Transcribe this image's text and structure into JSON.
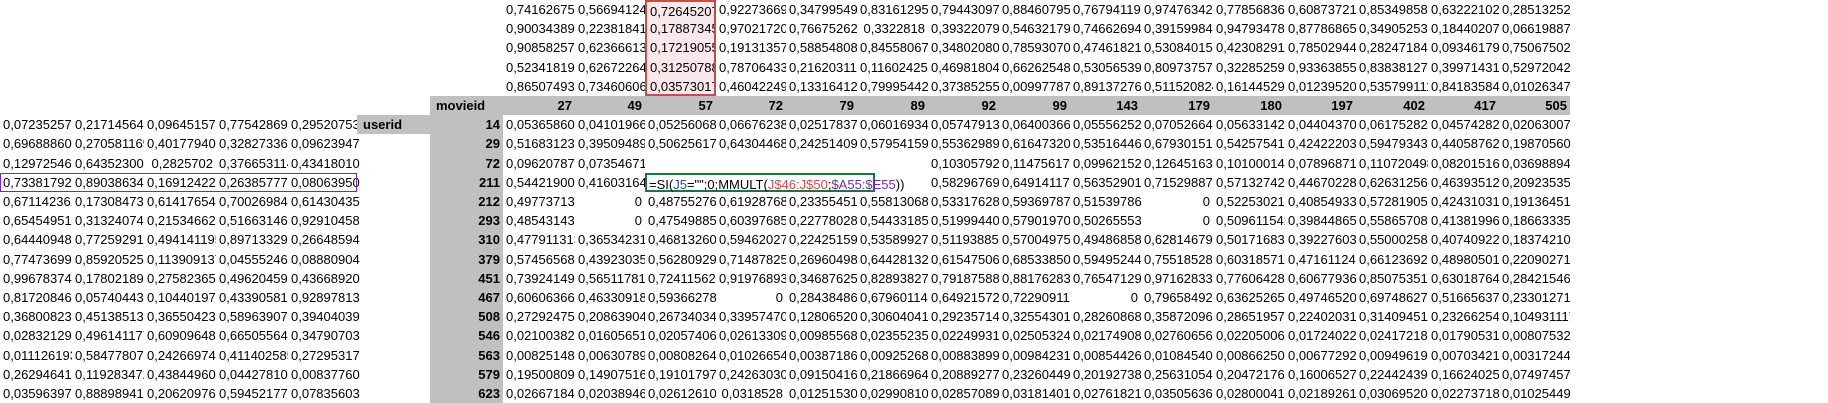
{
  "top_rows": [
    [
      "0,741626754",
      "0,566941246",
      "0,726452078",
      "0,922736695",
      "0,347995495",
      "0,831612957",
      "0,794430979",
      "0,884607959",
      "0,767941193",
      "0,974763423",
      "0,778568364",
      "0,608737219",
      "0,853498589",
      "0,632221028",
      "0,285132524"
    ],
    [
      "0,900343895",
      "0,22381841",
      "0,178873455",
      "0,970217202",
      "0,76675262",
      "0,3322818",
      "0,393220796",
      "0,546321797",
      "0,746626943",
      "0,391599842",
      "0,947934784",
      "0,877868657",
      "0,349052539",
      "0,184402072",
      "0,066198875"
    ],
    [
      "0,908582578",
      "0,623666138",
      "0,172190553",
      "0,191313579",
      "0,588548081",
      "0,845580679",
      "0,348020802",
      "0,785930702",
      "0,474618218",
      "0,530840151",
      "0,423082911",
      "0,785029445",
      "0,282471842",
      "0,093461792",
      "0,750675028"
    ],
    [
      "0,523418197",
      "0,626722646",
      "0,31250788",
      "0,787064337",
      "0,216203111",
      "0,116024255",
      "0,469818047",
      "0,662625488",
      "0,530565394",
      "0,809737576",
      "0,322852595",
      "0,933638559",
      "0,838381271",
      "0,39971431",
      "0,529720424"
    ],
    [
      "0,865074938",
      "0,734606065",
      "0,035730178",
      "0,460422495",
      "0,133164121",
      "0,79995442",
      "0,373852559",
      "0,00997787",
      "0,891372766",
      "0,511520824",
      "0,161445293",
      "0,012395201",
      "0,535799111",
      "0,841835844",
      "0,010263473"
    ]
  ],
  "header_row": {
    "movieid_label": "movieid",
    "movie_ids": [
      "27",
      "49",
      "57",
      "72",
      "79",
      "89",
      "92",
      "99",
      "143",
      "179",
      "180",
      "197",
      "402",
      "417",
      "505"
    ]
  },
  "userid_label": "userid",
  "formula": {
    "prefix": "=SI(",
    "ref1": "J5",
    "mid": "=\"\";0;MMULT(",
    "ref2": "J$46:J$50",
    "sep": ";",
    "ref3": "$A55:$E55",
    "suffix": "))"
  },
  "data_rows": [
    {
      "left": [
        "0,072352579",
        "0,217145647",
        "0,096451574",
        "0,775428694",
        "0,29520753"
      ],
      "userid": "14",
      "values": [
        "0,053658609",
        "0,041019661",
        "0,052560682",
        "0,06676238",
        "0,025178372",
        "0,060169342",
        "0,05747913",
        "0,064003667",
        "0,055562526",
        "0,070526648",
        "0,056331429",
        "0,044043708",
        "0,061752824",
        "0,045742822",
        "0,020630074"
      ]
    },
    {
      "left": [
        "0,696888602",
        "0,270581169",
        "0,401779403",
        "0,328273369",
        "0,096239477"
      ],
      "userid": "29",
      "values": [
        "0,516831232",
        "0,395094892",
        "0,506256173",
        "0,643044685",
        "0,242514094",
        "0,579541591",
        "0,553629894",
        "0,616473204",
        "0,535164464",
        "0,679301519",
        "0,542575418",
        "0,42422203",
        "0,594793438",
        "0,440587628",
        "0,198705606"
      ]
    },
    {
      "left": [
        "0,129725461",
        "0,643523004",
        "0,2825702",
        "0,376653114",
        "0,434180101"
      ],
      "userid": "72",
      "values": [
        "0,096207873",
        "0,073546715",
        "",
        "",
        "",
        "",
        "0,103057925",
        "0,114756176",
        "0,099621526",
        "0,126451635",
        "0,10100014",
        "0,078968717",
        "0,110720498",
        "0,082015165",
        "0,036988948"
      ]
    },
    {
      "left": [
        "0,733817925",
        "0,89038634",
        "0,169124225",
        "0,263857775",
        "0,080639503"
      ],
      "userid": "211",
      "values": [
        "0,544219006",
        "0,416031649",
        "",
        "",
        "",
        "",
        "0,582967693",
        "0,649141177",
        "0,563529013",
        "0,715298873",
        "0,571327421",
        "0,446702283",
        "0,626312564",
        "0,463935123",
        "0,209235357"
      ],
      "formula_row": true
    },
    {
      "left": [
        "0,671142361",
        "0,173084731",
        "0,614176541",
        "0,700269846",
        "0,614304356"
      ],
      "userid": "212",
      "values": [
        "0,497737131",
        "0",
        "0,487552763",
        "0,619287684",
        "0,233554518",
        "0,558130683",
        "0,533176283",
        "0,593697874",
        "0,515397865",
        "0",
        "0,52253021",
        "0,408549335",
        "0,572819058",
        "0,424310313",
        "0,191364515"
      ]
    },
    {
      "left": [
        "0,654549512",
        "0,313240743",
        "0,21534662",
        "0,516631469",
        "0,929104587"
      ],
      "userid": "293",
      "values": [
        "0,48543143",
        "0",
        "0,475498853",
        "0,603976853",
        "0,227780281",
        "0,544331855",
        "0,519994409",
        "0,579019708",
        "0,502655533",
        "0",
        "0,509611542",
        "0,39844865",
        "0,558657085",
        "0,413819965",
        "0,186633354"
      ]
    },
    {
      "left": [
        "0,644409483",
        "0,772592915",
        "0,494141195",
        "0,897133299",
        "0,266485949"
      ],
      "userid": "310",
      "values": [
        "0,477911313",
        "0,365342315",
        "0,468132608",
        "0,594620276",
        "0,224251597",
        "0,535899275",
        "0,511938856",
        "0,570049757",
        "0,494868587",
        "0,628146793",
        "0,501716836",
        "0,392276037",
        "0,550002584",
        "0,407409226",
        "0,183742102"
      ]
    },
    {
      "left": [
        "0,774736991",
        "0,859205259",
        "0,113909137",
        "0,045552464",
        "0,088809043"
      ],
      "userid": "379",
      "values": [
        "0,57456568",
        "0,439230355",
        "0,562809297",
        "0,71487825",
        "0,269604983",
        "0,64428132",
        "0,615475066",
        "0,685338508",
        "0,594952449",
        "0,755185282",
        "0,603185711",
        "0,471611242",
        "0,661236928",
        "0,489805017",
        "0,220902713"
      ]
    },
    {
      "left": [
        "0,996783744",
        "0,178021894",
        "0,27582365",
        "0,49620459",
        "0,436689205"
      ],
      "userid": "451",
      "values": [
        "0,739241493",
        "0,565117818",
        "0,724115622",
        "0,919768937",
        "0,346876252",
        "0,828938277",
        "0,791875886",
        "0,881762833",
        "0,765471297",
        "0,971628335",
        "0,776064288",
        "0,606779364",
        "0,850753519",
        "0,630187643",
        "0,284215464"
      ]
    },
    {
      "left": [
        "0,817208464",
        "0,057404438",
        "0,104401972",
        "0,433905812",
        "0,928978137"
      ],
      "userid": "467",
      "values": [
        "0,60606366",
        "0,463309185",
        "0,593662787",
        "0",
        "0,284384864",
        "0,679601147",
        "0,64921572",
        "0,722909111",
        "0",
        "0,79658492",
        "0,636252656",
        "0,497465208",
        "0,69748627",
        "0,516656375",
        "0,233012711"
      ]
    },
    {
      "left": [
        "0,368008238",
        "0,451385135",
        "0,365504238",
        "0,589639073",
        "0,394040394"
      ],
      "userid": "508",
      "values": [
        "0,272924755",
        "0,208639049",
        "0,267340349",
        "0,339574705",
        "0,128065209",
        "0,306040419",
        "0,292357144",
        "0,325543016",
        "0,282608685",
        "0,358720969",
        "0,286519571",
        "0,224020311",
        "0,314094511",
        "0,232662546",
        "0,104931117"
      ]
    },
    {
      "left": [
        "0,028321294",
        "0,496141177",
        "0,609096482",
        "0,665055643",
        "0,347907039"
      ],
      "userid": "546",
      "values": [
        "0,021003829",
        "0,01605651",
        "0,020574063",
        "0,026133097",
        "0,009855683",
        "0,023552355",
        "0,022499313",
        "0,025053242",
        "0,021749088",
        "0,027606562",
        "0,022050064",
        "0,017240226",
        "0,024172185",
        "0,017905318",
        "0,008075322"
      ]
    },
    {
      "left": [
        "0,011126193",
        "0,58477807",
        "0,242669748",
        "0,411402585",
        "0,272953173"
      ],
      "userid": "563",
      "values": [
        "0,008251482",
        "0,006307898",
        "0,008082646",
        "0,010266547",
        "0,003871865",
        "0,009252686",
        "0,008838992",
        "0,009842319",
        "0,008544262",
        "0,010845406",
        "0,008662502",
        "0,006772928",
        "0,00949619",
        "0,007034213",
        "0,00317244"
      ]
    },
    {
      "left": [
        "0,262946416",
        "0,119283472",
        "0,438449609",
        "0,044278103",
        "0,008377604"
      ],
      "userid": "579",
      "values": [
        "0,195008097",
        "0,149075168",
        "0,19101797",
        "0,242630306",
        "0,091504168",
        "0,218669646",
        "0,208892778",
        "0,232604492",
        "0,201927384",
        "0,256310548",
        "0,20472176",
        "0,16006527",
        "0,224424395",
        "0,166240253",
        "0,074974575"
      ]
    },
    {
      "left": [
        "0,035963975",
        "0,88898941",
        "0,206209766",
        "0,594521779",
        "0,078356034"
      ],
      "userid": "623",
      "values": [
        "0,026671846",
        "0,020389461",
        "0,026126105",
        "0,0318528",
        "0,012515301",
        "0,029908108",
        "0,028570896",
        "0,031814019",
        "0,027618218",
        "0,035056368",
        "0,028000414",
        "0,02189261",
        "0,030695202",
        "0,022737182",
        "0,010254499"
      ]
    }
  ]
}
